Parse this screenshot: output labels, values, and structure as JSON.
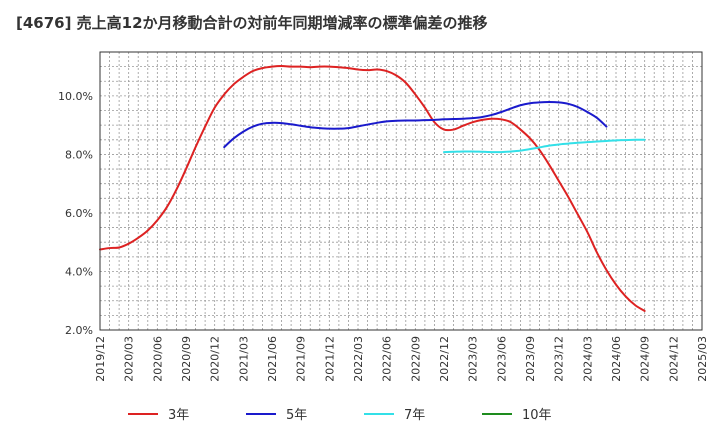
{
  "chart_data": {
    "type": "line",
    "title": "[4676]  売上高12か月移動合計の対前年同期増減率の標準偏差の推移",
    "xlabel": "",
    "ylabel": "",
    "ylim": [
      2.0,
      11.5
    ],
    "y_ticks": [
      2.0,
      4.0,
      6.0,
      8.0,
      10.0
    ],
    "y_tick_labels": [
      "2.0%",
      "4.0%",
      "6.0%",
      "8.0%",
      "10.0%"
    ],
    "x_range": [
      "2019-12",
      "2025-03"
    ],
    "x_tick_labels": [
      "2019/12",
      "2020/03",
      "2020/06",
      "2020/09",
      "2020/12",
      "2021/03",
      "2021/06",
      "2021/09",
      "2021/12",
      "2022/03",
      "2022/06",
      "2022/09",
      "2022/12",
      "2023/03",
      "2023/06",
      "2023/09",
      "2023/12",
      "2024/03",
      "2024/06",
      "2024/09",
      "2024/12",
      "2025/03"
    ],
    "grid": true,
    "legend_position": "bottom",
    "series": [
      {
        "name": "3年",
        "color": "#dd2222",
        "points": [
          [
            "2019-12",
            4.75
          ],
          [
            "2020-01",
            4.8
          ],
          [
            "2020-02",
            4.82
          ],
          [
            "2020-03",
            4.95
          ],
          [
            "2020-04",
            5.15
          ],
          [
            "2020-05",
            5.4
          ],
          [
            "2020-06",
            5.75
          ],
          [
            "2020-07",
            6.2
          ],
          [
            "2020-08",
            6.8
          ],
          [
            "2020-09",
            7.5
          ],
          [
            "2020-10",
            8.25
          ],
          [
            "2020-11",
            8.95
          ],
          [
            "2020-12",
            9.6
          ],
          [
            "2021-01",
            10.05
          ],
          [
            "2021-02",
            10.4
          ],
          [
            "2021-03",
            10.65
          ],
          [
            "2021-04",
            10.85
          ],
          [
            "2021-05",
            10.95
          ],
          [
            "2021-06",
            11.0
          ],
          [
            "2021-07",
            11.02
          ],
          [
            "2021-08",
            11.0
          ],
          [
            "2021-09",
            11.0
          ],
          [
            "2021-10",
            10.98
          ],
          [
            "2021-11",
            11.0
          ],
          [
            "2021-12",
            11.0
          ],
          [
            "2022-01",
            10.98
          ],
          [
            "2022-02",
            10.95
          ],
          [
            "2022-03",
            10.9
          ],
          [
            "2022-04",
            10.88
          ],
          [
            "2022-05",
            10.9
          ],
          [
            "2022-06",
            10.85
          ],
          [
            "2022-07",
            10.7
          ],
          [
            "2022-08",
            10.45
          ],
          [
            "2022-09",
            10.05
          ],
          [
            "2022-10",
            9.6
          ],
          [
            "2022-11",
            9.1
          ],
          [
            "2022-12",
            8.85
          ],
          [
            "2023-01",
            8.85
          ],
          [
            "2023-02",
            8.98
          ],
          [
            "2023-03",
            9.1
          ],
          [
            "2023-04",
            9.18
          ],
          [
            "2023-05",
            9.22
          ],
          [
            "2023-06",
            9.2
          ],
          [
            "2023-07",
            9.1
          ],
          [
            "2023-08",
            8.85
          ],
          [
            "2023-09",
            8.55
          ],
          [
            "2023-10",
            8.15
          ],
          [
            "2023-11",
            7.65
          ],
          [
            "2023-12",
            7.1
          ],
          [
            "2024-01",
            6.55
          ],
          [
            "2024-02",
            5.95
          ],
          [
            "2024-03",
            5.35
          ],
          [
            "2024-04",
            4.65
          ],
          [
            "2024-05",
            4.05
          ],
          [
            "2024-06",
            3.55
          ],
          [
            "2024-07",
            3.15
          ],
          [
            "2024-08",
            2.85
          ],
          [
            "2024-09",
            2.65
          ]
        ]
      },
      {
        "name": "5年",
        "color": "#1a1acc",
        "points": [
          [
            "2021-01",
            8.25
          ],
          [
            "2021-02",
            8.55
          ],
          [
            "2021-03",
            8.78
          ],
          [
            "2021-04",
            8.95
          ],
          [
            "2021-05",
            9.05
          ],
          [
            "2021-06",
            9.08
          ],
          [
            "2021-07",
            9.07
          ],
          [
            "2021-08",
            9.03
          ],
          [
            "2021-09",
            8.98
          ],
          [
            "2021-10",
            8.93
          ],
          [
            "2021-11",
            8.9
          ],
          [
            "2021-12",
            8.88
          ],
          [
            "2022-01",
            8.88
          ],
          [
            "2022-02",
            8.9
          ],
          [
            "2022-03",
            8.96
          ],
          [
            "2022-04",
            9.02
          ],
          [
            "2022-05",
            9.08
          ],
          [
            "2022-06",
            9.13
          ],
          [
            "2022-07",
            9.15
          ],
          [
            "2022-08",
            9.16
          ],
          [
            "2022-09",
            9.16
          ],
          [
            "2022-10",
            9.17
          ],
          [
            "2022-11",
            9.18
          ],
          [
            "2022-12",
            9.2
          ],
          [
            "2023-01",
            9.21
          ],
          [
            "2023-02",
            9.22
          ],
          [
            "2023-03",
            9.24
          ],
          [
            "2023-04",
            9.28
          ],
          [
            "2023-05",
            9.35
          ],
          [
            "2023-06",
            9.45
          ],
          [
            "2023-07",
            9.57
          ],
          [
            "2023-08",
            9.68
          ],
          [
            "2023-09",
            9.75
          ],
          [
            "2023-10",
            9.78
          ],
          [
            "2023-11",
            9.79
          ],
          [
            "2023-12",
            9.78
          ],
          [
            "2024-01",
            9.73
          ],
          [
            "2024-02",
            9.62
          ],
          [
            "2024-03",
            9.45
          ],
          [
            "2024-04",
            9.25
          ],
          [
            "2024-05",
            8.95
          ]
        ]
      },
      {
        "name": "7年",
        "color": "#33e0e8",
        "points": [
          [
            "2022-12",
            8.08
          ],
          [
            "2023-01",
            8.09
          ],
          [
            "2023-02",
            8.1
          ],
          [
            "2023-03",
            8.1
          ],
          [
            "2023-04",
            8.09
          ],
          [
            "2023-05",
            8.08
          ],
          [
            "2023-06",
            8.08
          ],
          [
            "2023-07",
            8.1
          ],
          [
            "2023-08",
            8.13
          ],
          [
            "2023-09",
            8.18
          ],
          [
            "2023-10",
            8.24
          ],
          [
            "2023-11",
            8.3
          ],
          [
            "2023-12",
            8.34
          ],
          [
            "2024-01",
            8.37
          ],
          [
            "2024-02",
            8.4
          ],
          [
            "2024-03",
            8.42
          ],
          [
            "2024-04",
            8.44
          ],
          [
            "2024-05",
            8.46
          ],
          [
            "2024-06",
            8.48
          ],
          [
            "2024-07",
            8.49
          ],
          [
            "2024-08",
            8.5
          ],
          [
            "2024-09",
            8.5
          ]
        ]
      },
      {
        "name": "10年",
        "color": "#1e8c1e",
        "points": []
      }
    ]
  }
}
